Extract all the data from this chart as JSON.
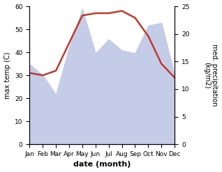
{
  "months": [
    "Jan",
    "Feb",
    "Mar",
    "Apr",
    "May",
    "Jun",
    "Jul",
    "Aug",
    "Sep",
    "Oct",
    "Nov",
    "Dec"
  ],
  "temp_max": [
    31,
    30,
    32,
    44,
    56,
    57,
    57,
    58,
    55,
    47,
    35,
    29
  ],
  "precip": [
    14.5,
    12.5,
    9.0,
    17.5,
    24.5,
    16.5,
    19.0,
    17.0,
    16.5,
    21.5,
    22.0,
    12.5
  ],
  "temp_color": "#c0392b",
  "precip_fill_color": "#c5cce8",
  "xlabel": "date (month)",
  "ylabel_left": "max temp (C)",
  "ylabel_right": "med. precipitation\n(kg/m2)",
  "ylim_left": [
    0,
    60
  ],
  "ylim_right": [
    0,
    25
  ],
  "yticks_left": [
    0,
    10,
    20,
    30,
    40,
    50,
    60
  ],
  "yticks_right": [
    0,
    5,
    10,
    15,
    20,
    25
  ],
  "bg_color": "#ffffff",
  "line_width": 1.8
}
